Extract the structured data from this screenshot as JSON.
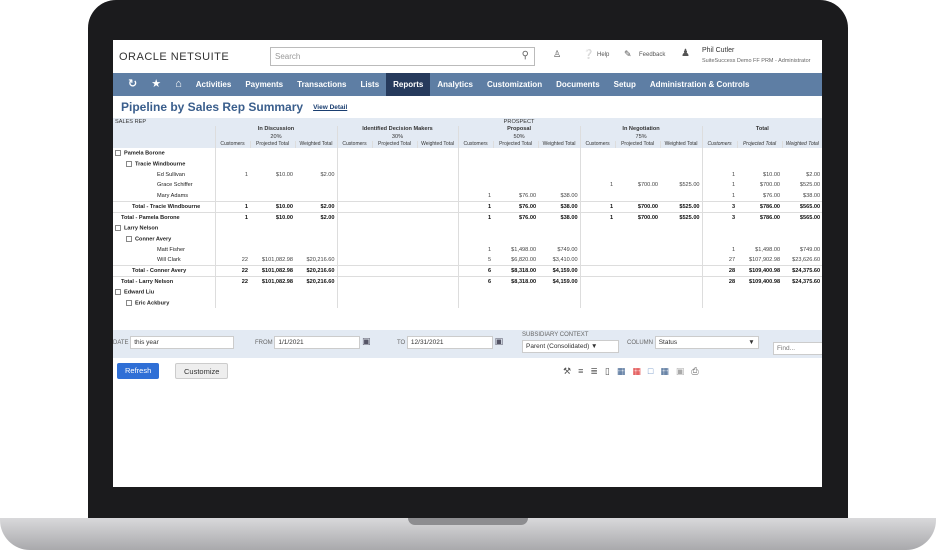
{
  "header": {
    "logo": "ORACLE NETSUITE",
    "search_placeholder": "Search",
    "help": "Help",
    "feedback": "Feedback",
    "user_name": "Phil Cutler",
    "user_role": "SuiteSuccess Demo FF PRM - Administrator"
  },
  "nav": {
    "items": [
      "Activities",
      "Payments",
      "Transactions",
      "Lists",
      "Reports",
      "Analytics",
      "Customization",
      "Documents",
      "Setup",
      "Administration & Controls"
    ],
    "active": "Reports"
  },
  "page": {
    "title": "Pipeline by Sales Rep Summary",
    "view_detail": "View Detail"
  },
  "table": {
    "rep_header": "SALES REP",
    "prospect_label": "PROSPECT",
    "groups": [
      {
        "name": "In Discussion",
        "pct": "20%"
      },
      {
        "name": "Identified Decision Makers",
        "pct": "30%"
      },
      {
        "name": "Proposal",
        "pct": "50%"
      },
      {
        "name": "In Negotiation",
        "pct": "75%"
      },
      {
        "name": "Total",
        "pct": ""
      }
    ],
    "subcols": [
      "Customers",
      "Projected Total",
      "Weighted Total"
    ],
    "rows": [
      {
        "label": "Pamela Borone",
        "level": 0,
        "type": "group",
        "v": [
          "",
          "",
          "",
          "",
          "",
          "",
          "",
          "",
          "",
          "",
          "",
          "",
          "",
          "",
          ""
        ]
      },
      {
        "label": "Tracie Windbourne",
        "level": 1,
        "type": "group",
        "v": [
          "",
          "",
          "",
          "",
          "",
          "",
          "",
          "",
          "",
          "",
          "",
          "",
          "",
          "",
          ""
        ]
      },
      {
        "label": "Ed Sullivan",
        "level": 2,
        "type": "item",
        "v": [
          "1",
          "$10.00",
          "$2.00",
          "",
          "",
          "",
          "",
          "",
          "",
          "",
          "",
          "",
          "1",
          "$10.00",
          "$2.00"
        ]
      },
      {
        "label": "Grace Schiffer",
        "level": 2,
        "type": "item",
        "v": [
          "",
          "",
          "",
          "",
          "",
          "",
          "",
          "",
          "",
          "1",
          "$700.00",
          "$525.00",
          "1",
          "$700.00",
          "$525.00"
        ]
      },
      {
        "label": "Mary Adams",
        "level": 2,
        "type": "item",
        "v": [
          "",
          "",
          "",
          "",
          "",
          "",
          "1",
          "$76.00",
          "$38.00",
          "",
          "",
          "",
          "1",
          "$76.00",
          "$38.00"
        ]
      },
      {
        "label": "Total - Tracie Windbourne",
        "level": 1,
        "type": "total",
        "v": [
          "1",
          "$10.00",
          "$2.00",
          "",
          "",
          "",
          "1",
          "$76.00",
          "$38.00",
          "1",
          "$700.00",
          "$525.00",
          "3",
          "$786.00",
          "$565.00"
        ]
      },
      {
        "label": "Total - Pamela Borone",
        "level": 0,
        "type": "total",
        "v": [
          "1",
          "$10.00",
          "$2.00",
          "",
          "",
          "",
          "1",
          "$76.00",
          "$38.00",
          "1",
          "$700.00",
          "$525.00",
          "3",
          "$786.00",
          "$565.00"
        ]
      },
      {
        "label": "Larry Nelson",
        "level": 0,
        "type": "group",
        "v": [
          "",
          "",
          "",
          "",
          "",
          "",
          "",
          "",
          "",
          "",
          "",
          "",
          "",
          "",
          ""
        ]
      },
      {
        "label": "Conner Avery",
        "level": 1,
        "type": "group",
        "v": [
          "",
          "",
          "",
          "",
          "",
          "",
          "",
          "",
          "",
          "",
          "",
          "",
          "",
          "",
          ""
        ]
      },
      {
        "label": "Matt Fisher",
        "level": 2,
        "type": "item",
        "v": [
          "",
          "",
          "",
          "",
          "",
          "",
          "1",
          "$1,498.00",
          "$749.00",
          "",
          "",
          "",
          "1",
          "$1,498.00",
          "$749.00"
        ]
      },
      {
        "label": "Will Clark",
        "level": 2,
        "type": "item",
        "v": [
          "22",
          "$101,082.98",
          "$20,216.60",
          "",
          "",
          "",
          "5",
          "$6,820.00",
          "$3,410.00",
          "",
          "",
          "",
          "27",
          "$107,902.98",
          "$23,626.60"
        ]
      },
      {
        "label": "Total - Conner Avery",
        "level": 1,
        "type": "total",
        "v": [
          "22",
          "$101,082.98",
          "$20,216.60",
          "",
          "",
          "",
          "6",
          "$8,318.00",
          "$4,159.00",
          "",
          "",
          "",
          "28",
          "$109,400.98",
          "$24,375.60"
        ]
      },
      {
        "label": "Total - Larry Nelson",
        "level": 0,
        "type": "total",
        "v": [
          "22",
          "$101,082.98",
          "$20,216.60",
          "",
          "",
          "",
          "6",
          "$8,318.00",
          "$4,159.00",
          "",
          "",
          "",
          "28",
          "$109,400.98",
          "$24,375.60"
        ]
      },
      {
        "label": "Edward Liu",
        "level": 0,
        "type": "group",
        "v": [
          "",
          "",
          "",
          "",
          "",
          "",
          "",
          "",
          "",
          "",
          "",
          "",
          "",
          "",
          ""
        ]
      },
      {
        "label": "Eric Ackbury",
        "level": 1,
        "type": "group",
        "v": [
          "",
          "",
          "",
          "",
          "",
          "",
          "",
          "",
          "",
          "",
          "",
          "",
          "",
          "",
          ""
        ]
      }
    ]
  },
  "filters": {
    "date_label": "DATE",
    "date_value": "this year",
    "from_label": "FROM",
    "from_value": "1/1/2021",
    "to_label": "TO",
    "to_value": "12/31/2021",
    "subsidiary_label": "SUBSIDIARY CONTEXT",
    "subsidiary_value": "Parent (Consolidated)",
    "column_label": "COLUMN",
    "column_value": "Status",
    "find_placeholder": "Find..."
  },
  "buttons": {
    "refresh": "Refresh",
    "customize": "Customize"
  },
  "colors": {
    "nav": "#5e7ea4",
    "nav_active": "#263a5c",
    "title": "#3a5e8c",
    "refresh": "#2f6fd6",
    "header_bg": "#e3eaf3"
  }
}
